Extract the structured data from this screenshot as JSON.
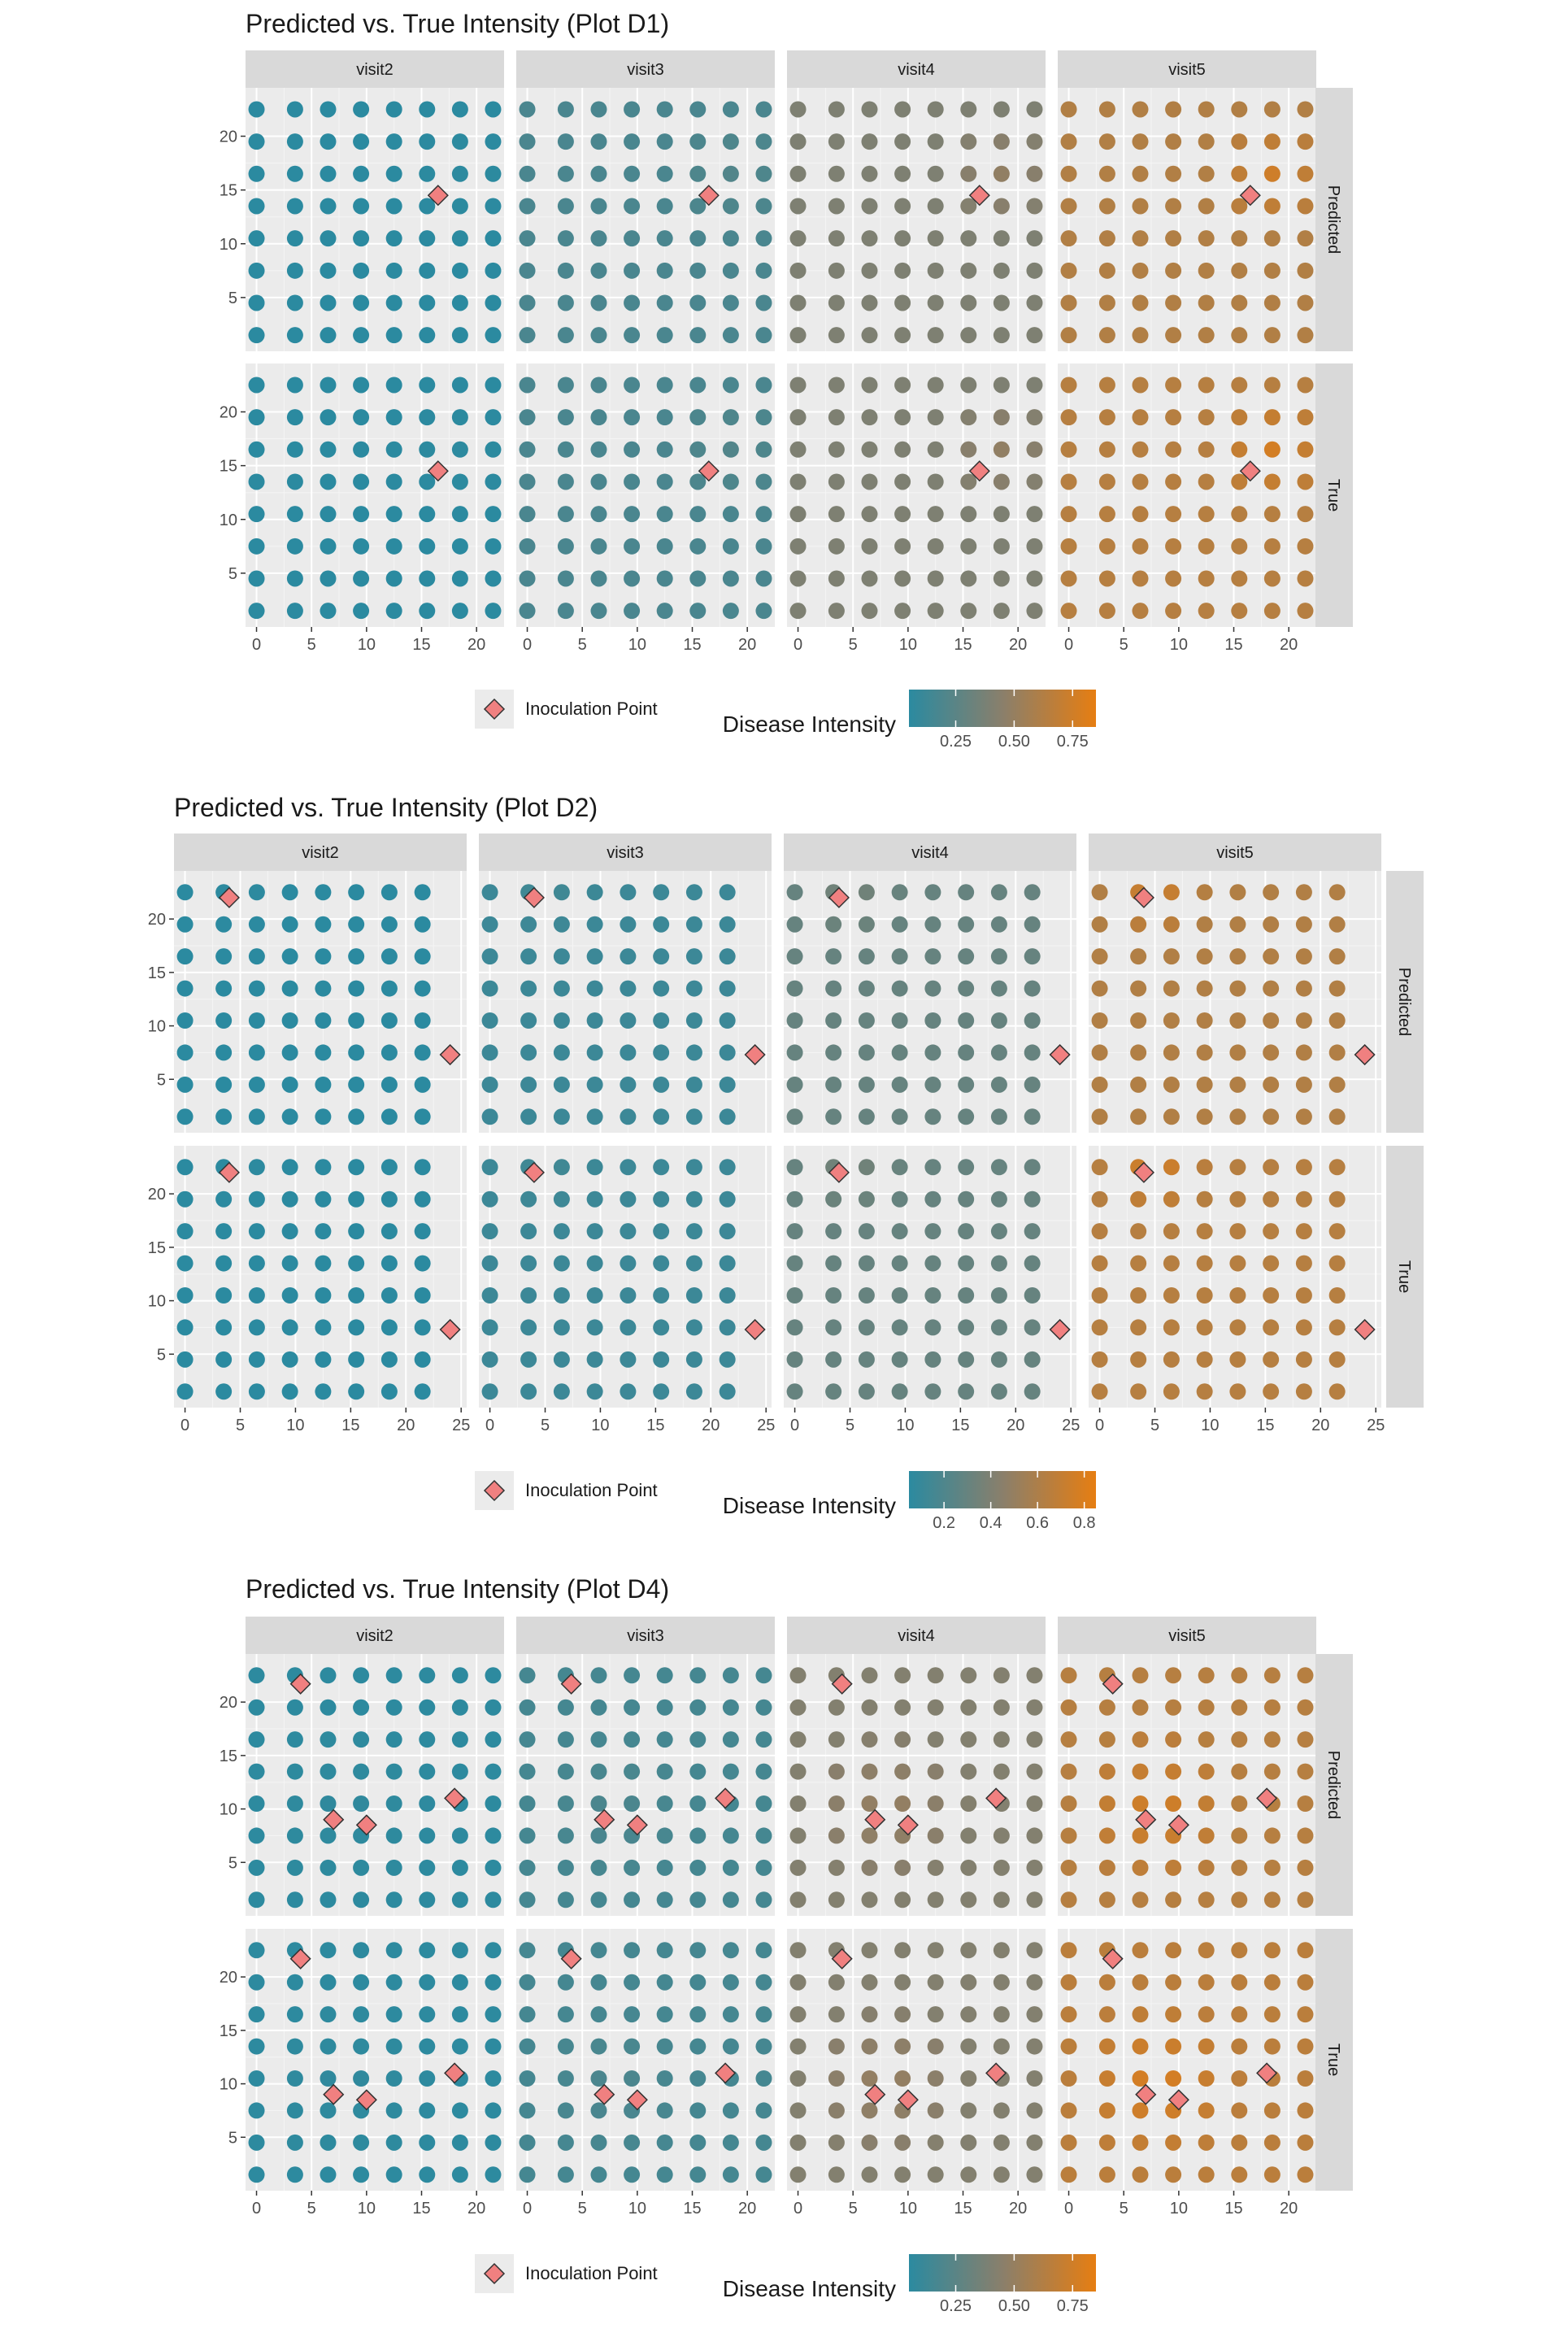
{
  "chart_data": [
    {
      "type": "scatter",
      "title": "Predicted vs. True Intensity (Plot D1)",
      "facet_columns": [
        "visit2",
        "visit3",
        "visit4",
        "visit5"
      ],
      "facet_rows": [
        "Predicted",
        "True"
      ],
      "xlim": [
        -1,
        22.5
      ],
      "ylim": [
        0,
        24.5
      ],
      "x_ticks": [
        0,
        5,
        10,
        15,
        20
      ],
      "y_ticks": [
        5,
        10,
        15,
        20
      ],
      "grid_x": [
        0,
        3.5,
        6.5,
        9.5,
        12.5,
        15.5,
        18.5,
        21.5
      ],
      "grid_y": [
        1.5,
        4.5,
        7.5,
        10.5,
        13.5,
        16.5,
        19.5,
        22.5
      ],
      "inoculation_points": [
        {
          "x": 16.5,
          "y": 14.5
        }
      ],
      "mean_intensity": {
        "Predicted": [
          0.05,
          0.18,
          0.4,
          0.62
        ],
        "True": [
          0.05,
          0.18,
          0.4,
          0.64
        ]
      },
      "hotspot": {
        "x": 18.5,
        "y": 16.5,
        "radius": 6
      },
      "legend": {
        "point_label": "Inoculation Point",
        "colorbar_title": "Disease Intensity",
        "colorbar_ticks": [
          0.25,
          0.5,
          0.75
        ],
        "colorbar_tick_labels": [
          "0.25",
          "0.50",
          "0.75"
        ],
        "range": [
          0.05,
          0.85
        ]
      },
      "colors": {
        "low": "#2b8aa0",
        "mid": "#8a7f6b",
        "high": "#e67e12",
        "point": "#f08080"
      }
    },
    {
      "type": "scatter",
      "title": "Predicted vs. True Intensity (Plot D2)",
      "facet_columns": [
        "visit2",
        "visit3",
        "visit4",
        "visit5"
      ],
      "facet_rows": [
        "Predicted",
        "True"
      ],
      "xlim": [
        -1,
        25.5
      ],
      "ylim": [
        0,
        24.5
      ],
      "x_ticks": [
        0,
        5,
        10,
        15,
        20,
        25
      ],
      "y_ticks": [
        5,
        10,
        15,
        20
      ],
      "grid_x": [
        0,
        3.5,
        6.5,
        9.5,
        12.5,
        15.5,
        18.5,
        21.5
      ],
      "grid_y": [
        1.5,
        4.5,
        7.5,
        10.5,
        13.5,
        16.5,
        19.5,
        22.5
      ],
      "inoculation_points": [
        {
          "x": 4,
          "y": 22
        },
        {
          "x": 24,
          "y": 7.3
        }
      ],
      "mean_intensity": {
        "Predicted": [
          0.05,
          0.12,
          0.3,
          0.62
        ],
        "True": [
          0.05,
          0.12,
          0.3,
          0.64
        ]
      },
      "hotspot": {
        "x": 5,
        "y": 22.5,
        "radius": 5
      },
      "legend": {
        "point_label": "Inoculation Point",
        "colorbar_title": "Disease Intensity",
        "colorbar_ticks": [
          0.2,
          0.4,
          0.6,
          0.8
        ],
        "colorbar_tick_labels": [
          "0.2",
          "0.4",
          "0.6",
          "0.8"
        ],
        "range": [
          0.05,
          0.85
        ]
      },
      "colors": {
        "low": "#2b8aa0",
        "mid": "#8a7f6b",
        "high": "#e67e12",
        "point": "#f08080"
      }
    },
    {
      "type": "scatter",
      "title": "Predicted vs. True Intensity (Plot D4)",
      "facet_columns": [
        "visit2",
        "visit3",
        "visit4",
        "visit5"
      ],
      "facet_rows": [
        "Predicted",
        "True"
      ],
      "xlim": [
        -1,
        22.5
      ],
      "ylim": [
        0,
        24.5
      ],
      "x_ticks": [
        0,
        5,
        10,
        15,
        20
      ],
      "y_ticks": [
        5,
        10,
        15,
        20
      ],
      "grid_x": [
        0,
        3.5,
        6.5,
        9.5,
        12.5,
        15.5,
        18.5,
        21.5
      ],
      "grid_y": [
        1.5,
        4.5,
        7.5,
        10.5,
        13.5,
        16.5,
        19.5,
        22.5
      ],
      "inoculation_points": [
        {
          "x": 4,
          "y": 21.7
        },
        {
          "x": 7,
          "y": 9
        },
        {
          "x": 10,
          "y": 8.5
        },
        {
          "x": 18,
          "y": 11
        }
      ],
      "mean_intensity": {
        "Predicted": [
          0.06,
          0.16,
          0.42,
          0.64
        ],
        "True": [
          0.06,
          0.16,
          0.42,
          0.66
        ]
      },
      "hotspot": {
        "x": 8,
        "y": 10,
        "radius": 8
      },
      "legend": {
        "point_label": "Inoculation Point",
        "colorbar_title": "Disease Intensity",
        "colorbar_ticks": [
          0.25,
          0.5,
          0.75
        ],
        "colorbar_tick_labels": [
          "0.25",
          "0.50",
          "0.75"
        ],
        "range": [
          0.05,
          0.85
        ]
      },
      "colors": {
        "low": "#2b8aa0",
        "mid": "#8a7f6b",
        "high": "#e67e12",
        "point": "#f08080"
      }
    }
  ]
}
